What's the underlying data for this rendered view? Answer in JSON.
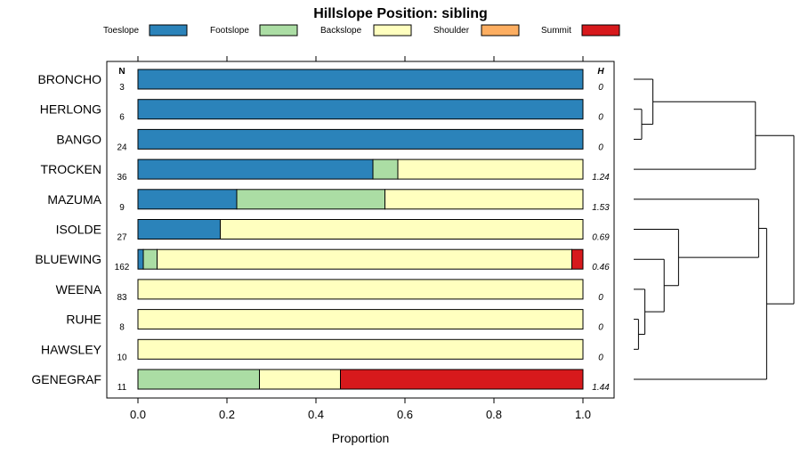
{
  "chart_data": {
    "type": "bar",
    "orientation": "horizontal",
    "stacked": true,
    "title": "Hillslope Position: sibling",
    "xlabel": "Proportion",
    "ylabel": "",
    "xlim": [
      0,
      1
    ],
    "xticks": [
      "0.0",
      "0.2",
      "0.4",
      "0.6",
      "0.8",
      "1.0"
    ],
    "legend_position": "top",
    "n_header": "N",
    "h_header": "H",
    "series": [
      {
        "name": "Toeslope",
        "color": "#2b83ba"
      },
      {
        "name": "Footslope",
        "color": "#abdda4"
      },
      {
        "name": "Backslope",
        "color": "#ffffbf"
      },
      {
        "name": "Shoulder",
        "color": "#fdae61"
      },
      {
        "name": "Summit",
        "color": "#d7191c"
      }
    ],
    "categories": [
      "BRONCHO",
      "HERLONG",
      "BANGO",
      "TROCKEN",
      "MAZUMA",
      "ISOLDE",
      "BLUEWING",
      "WEENA",
      "RUHE",
      "HAWSLEY",
      "GENEGRAF"
    ],
    "n": [
      "3",
      "6",
      "24",
      "36",
      "9",
      "27",
      "162",
      "83",
      "8",
      "10",
      "11"
    ],
    "h": [
      "0",
      "0",
      "0",
      "1.24",
      "1.53",
      "0.69",
      "0.46",
      "0",
      "0",
      "0",
      "1.44"
    ],
    "values": [
      [
        1.0,
        0.0,
        0.0,
        0.0,
        0.0
      ],
      [
        1.0,
        0.0,
        0.0,
        0.0,
        0.0
      ],
      [
        1.0,
        0.0,
        0.0,
        0.0,
        0.0
      ],
      [
        0.528,
        0.056,
        0.416,
        0.0,
        0.0
      ],
      [
        0.222,
        0.333,
        0.445,
        0.0,
        0.0
      ],
      [
        0.185,
        0.0,
        0.815,
        0.0,
        0.0
      ],
      [
        0.012,
        0.031,
        0.932,
        0.0,
        0.025
      ],
      [
        0.0,
        0.0,
        1.0,
        0.0,
        0.0
      ],
      [
        0.0,
        0.0,
        1.0,
        0.0,
        0.0
      ],
      [
        0.0,
        0.0,
        1.0,
        0.0,
        0.0
      ],
      [
        0.0,
        0.273,
        0.182,
        0.0,
        0.545
      ]
    ],
    "dendrogram": {
      "order": [
        "BRONCHO",
        "HERLONG",
        "BANGO",
        "TROCKEN",
        "MAZUMA",
        "ISOLDE",
        "BLUEWING",
        "WEENA",
        "RUHE",
        "HAWSLEY",
        "GENEGRAF"
      ],
      "merges": [
        {
          "a": "HERLONG",
          "b": "BANGO",
          "height": 0.05
        },
        {
          "a": "BRONCHO",
          "b": "m1",
          "height": 0.12
        },
        {
          "a": "m2",
          "b": "TROCKEN",
          "height": 0.76
        },
        {
          "a": "RUHE",
          "b": "HAWSLEY",
          "height": 0.03
        },
        {
          "a": "WEENA",
          "b": "m4",
          "height": 0.07
        },
        {
          "a": "BLUEWING",
          "b": "m5",
          "height": 0.19
        },
        {
          "a": "ISOLDE",
          "b": "m6",
          "height": 0.28
        },
        {
          "a": "MAZUMA",
          "b": "m7",
          "height": 0.78
        },
        {
          "a": "m8",
          "b": "GENEGRAF",
          "height": 0.83
        },
        {
          "a": "m3",
          "b": "m9",
          "height": 1.0
        }
      ]
    }
  }
}
